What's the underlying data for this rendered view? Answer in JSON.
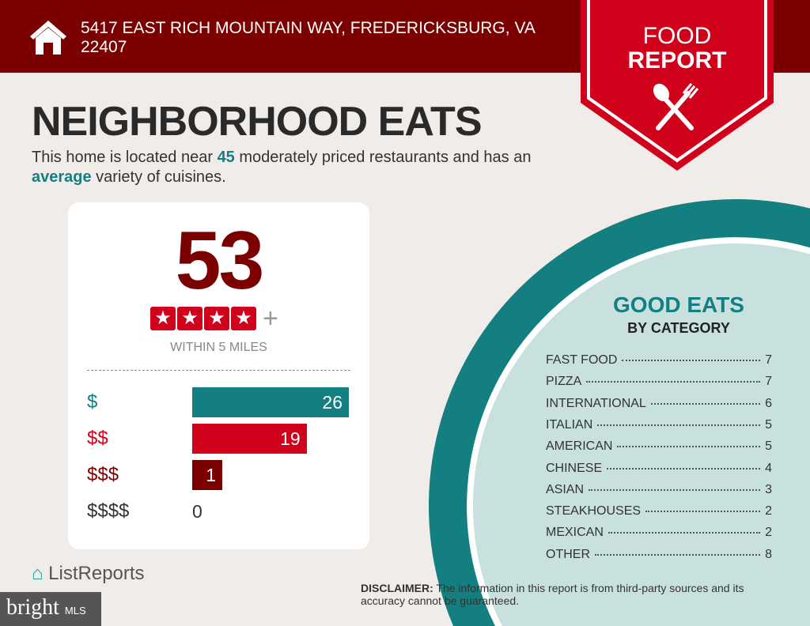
{
  "header": {
    "address": "5417 EAST RICH MOUNTAIN WAY, FREDERICKSBURG, VA 22407",
    "badge_line1": "FOOD",
    "badge_line2": "REPORT"
  },
  "title": "NEIGHBORHOOD EATS",
  "summary": {
    "pre": "This home is located near ",
    "count": "45",
    "mid": " moderately priced restaurants and has an ",
    "variety": "average",
    "post": " variety of cuisines."
  },
  "score_card": {
    "score": "53",
    "stars": 4,
    "plus": "+",
    "within": "WITHIN 5 MILES",
    "price_rows": [
      {
        "label": "$",
        "value": "26",
        "color": "#137f80"
      },
      {
        "label": "$$",
        "value": "19",
        "color": "#d0021b"
      },
      {
        "label": "$$$",
        "value": "1",
        "color": "#7b0000"
      },
      {
        "label": "$$$$",
        "value": "0",
        "color": "#333333"
      }
    ]
  },
  "good_eats": {
    "title": "GOOD EATS",
    "subtitle": "BY CATEGORY",
    "categories": [
      {
        "name": "FAST FOOD",
        "count": "7"
      },
      {
        "name": "PIZZA",
        "count": "7"
      },
      {
        "name": "INTERNATIONAL",
        "count": "6"
      },
      {
        "name": "ITALIAN",
        "count": "5"
      },
      {
        "name": "AMERICAN",
        "count": "5"
      },
      {
        "name": "CHINESE",
        "count": "4"
      },
      {
        "name": "ASIAN",
        "count": "3"
      },
      {
        "name": "STEAKHOUSES",
        "count": "2"
      },
      {
        "name": "MEXICAN",
        "count": "2"
      },
      {
        "name": "OTHER",
        "count": "8"
      }
    ]
  },
  "footer": {
    "logo": "ListReports",
    "bright": "bright",
    "mls": "MLS",
    "disclaimer_label": "DISCLAIMER:",
    "disclaimer": " The information in this report is from third-party sources and its accuracy cannot be guaranteed."
  }
}
